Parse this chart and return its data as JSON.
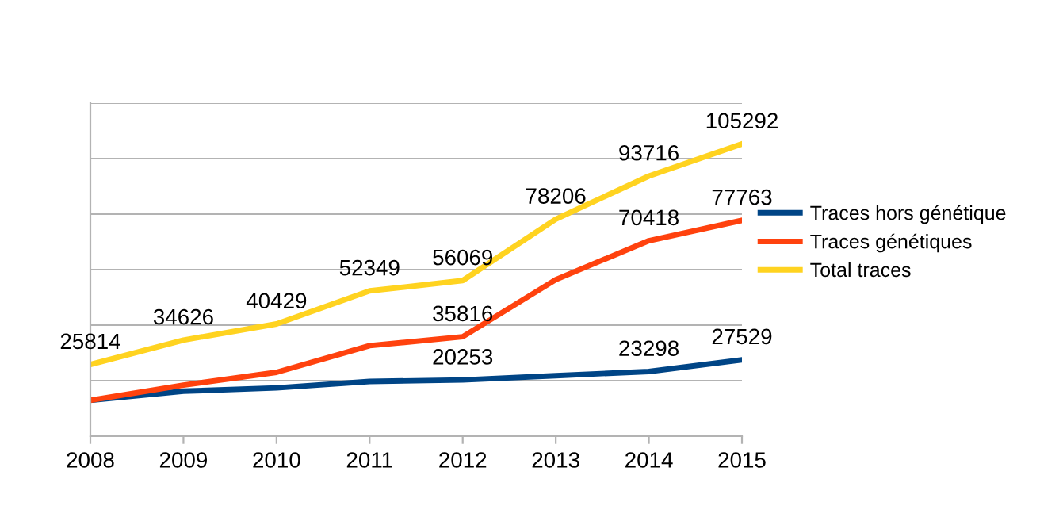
{
  "chart_data": {
    "type": "line",
    "categories": [
      "2008",
      "2009",
      "2010",
      "2011",
      "2012",
      "2013",
      "2014",
      "2015"
    ],
    "series": [
      {
        "name": "Traces hors génétique",
        "color": "#004586",
        "values": [
          12900,
          16200,
          17400,
          19700,
          20253,
          21800,
          23298,
          27529
        ],
        "value_labels": [
          null,
          null,
          null,
          null,
          "20253",
          null,
          "23298",
          "27529"
        ]
      },
      {
        "name": "Traces génétiques",
        "color": "#ff420e",
        "values": [
          12900,
          18400,
          23000,
          32600,
          35816,
          56400,
          70418,
          77763
        ],
        "value_labels": [
          null,
          null,
          null,
          null,
          "35816",
          null,
          "70418",
          "77763"
        ]
      },
      {
        "name": "Total traces",
        "color": "#ffd320",
        "values": [
          25814,
          34626,
          40429,
          52349,
          56069,
          78206,
          93716,
          105292
        ],
        "value_labels": [
          "25814",
          "34626",
          "40429",
          "52349",
          "56069",
          "78206",
          "93716",
          "105292"
        ]
      }
    ],
    "ylim": [
      0,
      120000
    ],
    "yticks": [
      {
        "value": 0,
        "label": null
      },
      {
        "value": 20000,
        "label": null
      },
      {
        "value": 40000,
        "label": null
      },
      {
        "value": 60000,
        "label": null
      },
      {
        "value": 80000,
        "label": null
      },
      {
        "value": 100000,
        "label": null
      },
      {
        "value": 120000,
        "label": null
      }
    ],
    "grid": "y",
    "legend": "right",
    "marker": "none",
    "line_style": "solid",
    "tick_labels": "x"
  }
}
